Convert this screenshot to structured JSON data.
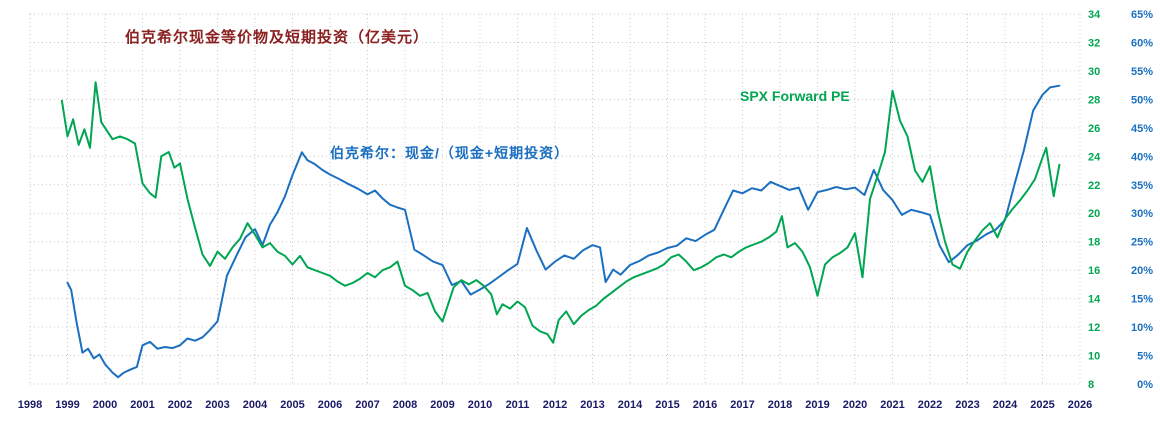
{
  "title": "伯克希尔现金等价物及短期投资（亿美元）",
  "labels": {
    "blue_series": "伯克希尔：现金/（现金+短期投资）",
    "green_series": "SPX Forward PE"
  },
  "colors": {
    "blue": "#1b6fc0",
    "green": "#00a651",
    "title": "#8b2020",
    "x_axis_text": "#1a1a66",
    "green_axis_text": "#00a651",
    "blue_axis_text": "#1b6fc0",
    "grid": "#c9c9c9"
  },
  "chart_data": {
    "type": "line",
    "x_axis": {
      "min": 1998,
      "max": 2026,
      "tick_step": 1
    },
    "right_axis_green": {
      "min": 8,
      "max": 34,
      "tick_step": 2,
      "label": "SPX Forward PE"
    },
    "right_axis_blue": {
      "min": 0,
      "max": 65,
      "tick_step": 5,
      "unit": "%"
    },
    "grid": true,
    "legend_position": "inline-annotations",
    "series": [
      {
        "name": "伯克希尔：现金/（现金+短期投资）",
        "axis": "blue",
        "color": "#1b6fc0",
        "points": [
          [
            1999.0,
            17.8
          ],
          [
            1999.1,
            16.5
          ],
          [
            1999.25,
            10.5
          ],
          [
            1999.4,
            5.5
          ],
          [
            1999.55,
            6.2
          ],
          [
            1999.7,
            4.5
          ],
          [
            1999.85,
            5.2
          ],
          [
            2000.0,
            3.5
          ],
          [
            2000.2,
            2.0
          ],
          [
            2000.35,
            1.2
          ],
          [
            2000.5,
            2.0
          ],
          [
            2000.7,
            2.6
          ],
          [
            2000.85,
            3.0
          ],
          [
            2001.0,
            6.8
          ],
          [
            2001.2,
            7.4
          ],
          [
            2001.4,
            6.2
          ],
          [
            2001.6,
            6.5
          ],
          [
            2001.8,
            6.3
          ],
          [
            2002.0,
            6.8
          ],
          [
            2002.2,
            8.0
          ],
          [
            2002.4,
            7.6
          ],
          [
            2002.6,
            8.2
          ],
          [
            2002.8,
            9.5
          ],
          [
            2003.0,
            11.0
          ],
          [
            2003.25,
            19.0
          ],
          [
            2003.5,
            22.5
          ],
          [
            2003.75,
            25.8
          ],
          [
            2004.0,
            27.2
          ],
          [
            2004.2,
            24.4
          ],
          [
            2004.4,
            28.0
          ],
          [
            2004.6,
            30.2
          ],
          [
            2004.8,
            33.0
          ],
          [
            2005.0,
            36.7
          ],
          [
            2005.25,
            40.7
          ],
          [
            2005.4,
            39.3
          ],
          [
            2005.6,
            38.6
          ],
          [
            2005.8,
            37.6
          ],
          [
            2006.0,
            36.8
          ],
          [
            2006.25,
            36.0
          ],
          [
            2006.5,
            35.1
          ],
          [
            2006.75,
            34.3
          ],
          [
            2007.0,
            33.3
          ],
          [
            2007.2,
            34.0
          ],
          [
            2007.4,
            32.6
          ],
          [
            2007.6,
            31.5
          ],
          [
            2007.8,
            31.0
          ],
          [
            2008.0,
            30.6
          ],
          [
            2008.25,
            23.6
          ],
          [
            2008.5,
            22.6
          ],
          [
            2008.75,
            21.5
          ],
          [
            2009.0,
            20.9
          ],
          [
            2009.25,
            17.4
          ],
          [
            2009.5,
            18.1
          ],
          [
            2009.75,
            15.7
          ],
          [
            2010.0,
            16.6
          ],
          [
            2010.25,
            17.6
          ],
          [
            2010.5,
            18.8
          ],
          [
            2010.75,
            20.0
          ],
          [
            2011.0,
            21.1
          ],
          [
            2011.25,
            27.4
          ],
          [
            2011.5,
            23.5
          ],
          [
            2011.75,
            20.1
          ],
          [
            2012.0,
            21.5
          ],
          [
            2012.25,
            22.6
          ],
          [
            2012.5,
            22.0
          ],
          [
            2012.75,
            23.5
          ],
          [
            2013.0,
            24.4
          ],
          [
            2013.2,
            24.0
          ],
          [
            2013.35,
            17.9
          ],
          [
            2013.55,
            20.1
          ],
          [
            2013.75,
            19.2
          ],
          [
            2014.0,
            20.9
          ],
          [
            2014.25,
            21.6
          ],
          [
            2014.5,
            22.6
          ],
          [
            2014.75,
            23.1
          ],
          [
            2015.0,
            23.9
          ],
          [
            2015.25,
            24.3
          ],
          [
            2015.5,
            25.6
          ],
          [
            2015.75,
            25.1
          ],
          [
            2016.0,
            26.2
          ],
          [
            2016.25,
            27.1
          ],
          [
            2016.5,
            30.6
          ],
          [
            2016.75,
            34.0
          ],
          [
            2017.0,
            33.5
          ],
          [
            2017.25,
            34.4
          ],
          [
            2017.5,
            34.0
          ],
          [
            2017.75,
            35.5
          ],
          [
            2018.0,
            34.8
          ],
          [
            2018.25,
            34.1
          ],
          [
            2018.5,
            34.5
          ],
          [
            2018.75,
            30.6
          ],
          [
            2019.0,
            33.7
          ],
          [
            2019.25,
            34.1
          ],
          [
            2019.5,
            34.6
          ],
          [
            2019.75,
            34.2
          ],
          [
            2020.0,
            34.5
          ],
          [
            2020.25,
            33.2
          ],
          [
            2020.5,
            37.6
          ],
          [
            2020.75,
            34.1
          ],
          [
            2021.0,
            32.3
          ],
          [
            2021.25,
            29.7
          ],
          [
            2021.5,
            30.6
          ],
          [
            2021.75,
            30.2
          ],
          [
            2022.0,
            29.7
          ],
          [
            2022.25,
            24.4
          ],
          [
            2022.5,
            21.4
          ],
          [
            2022.75,
            22.7
          ],
          [
            2023.0,
            24.4
          ],
          [
            2023.25,
            25.2
          ],
          [
            2023.5,
            26.3
          ],
          [
            2023.75,
            27.1
          ],
          [
            2024.0,
            28.8
          ],
          [
            2024.25,
            35.0
          ],
          [
            2024.5,
            41.0
          ],
          [
            2024.75,
            48.0
          ],
          [
            2025.0,
            50.8
          ],
          [
            2025.2,
            52.1
          ],
          [
            2025.45,
            52.4
          ]
        ]
      },
      {
        "name": "SPX Forward PE",
        "axis": "green",
        "color": "#00a651",
        "points": [
          [
            1998.85,
            27.9
          ],
          [
            1999.0,
            25.4
          ],
          [
            1999.15,
            26.6
          ],
          [
            1999.3,
            24.8
          ],
          [
            1999.45,
            25.9
          ],
          [
            1999.6,
            24.6
          ],
          [
            1999.75,
            29.2
          ],
          [
            1999.9,
            26.4
          ],
          [
            2000.05,
            25.8
          ],
          [
            2000.2,
            25.2
          ],
          [
            2000.4,
            25.4
          ],
          [
            2000.6,
            25.2
          ],
          [
            2000.8,
            24.9
          ],
          [
            2001.0,
            22.1
          ],
          [
            2001.2,
            21.4
          ],
          [
            2001.35,
            21.1
          ],
          [
            2001.5,
            24.0
          ],
          [
            2001.7,
            24.3
          ],
          [
            2001.85,
            23.2
          ],
          [
            2002.0,
            23.5
          ],
          [
            2002.2,
            21.0
          ],
          [
            2002.4,
            19.0
          ],
          [
            2002.6,
            17.1
          ],
          [
            2002.8,
            16.3
          ],
          [
            2003.0,
            17.3
          ],
          [
            2003.2,
            16.8
          ],
          [
            2003.4,
            17.6
          ],
          [
            2003.6,
            18.2
          ],
          [
            2003.8,
            19.3
          ],
          [
            2004.0,
            18.5
          ],
          [
            2004.2,
            17.6
          ],
          [
            2004.4,
            17.9
          ],
          [
            2004.6,
            17.3
          ],
          [
            2004.8,
            17.0
          ],
          [
            2005.0,
            16.4
          ],
          [
            2005.2,
            17.0
          ],
          [
            2005.4,
            16.2
          ],
          [
            2005.6,
            16.0
          ],
          [
            2005.8,
            15.8
          ],
          [
            2006.0,
            15.6
          ],
          [
            2006.2,
            15.2
          ],
          [
            2006.4,
            14.9
          ],
          [
            2006.6,
            15.1
          ],
          [
            2006.8,
            15.4
          ],
          [
            2007.0,
            15.8
          ],
          [
            2007.2,
            15.5
          ],
          [
            2007.4,
            16.0
          ],
          [
            2007.6,
            16.2
          ],
          [
            2007.8,
            16.6
          ],
          [
            2008.0,
            14.9
          ],
          [
            2008.2,
            14.6
          ],
          [
            2008.4,
            14.2
          ],
          [
            2008.6,
            14.4
          ],
          [
            2008.8,
            13.1
          ],
          [
            2009.0,
            12.4
          ],
          [
            2009.15,
            13.6
          ],
          [
            2009.3,
            14.8
          ],
          [
            2009.5,
            15.3
          ],
          [
            2009.7,
            15.0
          ],
          [
            2009.9,
            15.3
          ],
          [
            2010.1,
            14.9
          ],
          [
            2010.3,
            14.3
          ],
          [
            2010.45,
            12.9
          ],
          [
            2010.6,
            13.6
          ],
          [
            2010.8,
            13.3
          ],
          [
            2011.0,
            13.8
          ],
          [
            2011.2,
            13.4
          ],
          [
            2011.4,
            12.1
          ],
          [
            2011.6,
            11.7
          ],
          [
            2011.8,
            11.5
          ],
          [
            2011.95,
            10.9
          ],
          [
            2012.1,
            12.5
          ],
          [
            2012.3,
            13.1
          ],
          [
            2012.5,
            12.2
          ],
          [
            2012.7,
            12.8
          ],
          [
            2012.9,
            13.2
          ],
          [
            2013.1,
            13.5
          ],
          [
            2013.3,
            14.0
          ],
          [
            2013.5,
            14.4
          ],
          [
            2013.7,
            14.8
          ],
          [
            2013.9,
            15.2
          ],
          [
            2014.1,
            15.5
          ],
          [
            2014.3,
            15.7
          ],
          [
            2014.5,
            15.9
          ],
          [
            2014.7,
            16.1
          ],
          [
            2014.9,
            16.4
          ],
          [
            2015.1,
            16.9
          ],
          [
            2015.3,
            17.1
          ],
          [
            2015.5,
            16.6
          ],
          [
            2015.7,
            16.0
          ],
          [
            2015.9,
            16.2
          ],
          [
            2016.1,
            16.5
          ],
          [
            2016.3,
            16.9
          ],
          [
            2016.5,
            17.1
          ],
          [
            2016.7,
            16.9
          ],
          [
            2016.9,
            17.3
          ],
          [
            2017.1,
            17.6
          ],
          [
            2017.3,
            17.8
          ],
          [
            2017.5,
            18.0
          ],
          [
            2017.7,
            18.3
          ],
          [
            2017.9,
            18.7
          ],
          [
            2018.05,
            19.8
          ],
          [
            2018.2,
            17.6
          ],
          [
            2018.4,
            17.9
          ],
          [
            2018.6,
            17.3
          ],
          [
            2018.8,
            16.2
          ],
          [
            2019.0,
            14.2
          ],
          [
            2019.2,
            16.4
          ],
          [
            2019.4,
            16.9
          ],
          [
            2019.6,
            17.2
          ],
          [
            2019.8,
            17.6
          ],
          [
            2020.0,
            18.6
          ],
          [
            2020.2,
            15.5
          ],
          [
            2020.4,
            21.0
          ],
          [
            2020.6,
            22.6
          ],
          [
            2020.8,
            24.3
          ],
          [
            2021.0,
            28.6
          ],
          [
            2021.2,
            26.5
          ],
          [
            2021.4,
            25.4
          ],
          [
            2021.6,
            23.0
          ],
          [
            2021.8,
            22.2
          ],
          [
            2022.0,
            23.3
          ],
          [
            2022.2,
            20.2
          ],
          [
            2022.4,
            18.0
          ],
          [
            2022.6,
            16.4
          ],
          [
            2022.8,
            16.1
          ],
          [
            2023.0,
            17.3
          ],
          [
            2023.2,
            18.1
          ],
          [
            2023.4,
            18.8
          ],
          [
            2023.6,
            19.3
          ],
          [
            2023.8,
            18.3
          ],
          [
            2024.0,
            19.6
          ],
          [
            2024.2,
            20.3
          ],
          [
            2024.4,
            20.9
          ],
          [
            2024.6,
            21.6
          ],
          [
            2024.8,
            22.4
          ],
          [
            2025.0,
            23.9
          ],
          [
            2025.1,
            24.6
          ],
          [
            2025.3,
            21.2
          ],
          [
            2025.45,
            23.4
          ]
        ]
      }
    ]
  }
}
